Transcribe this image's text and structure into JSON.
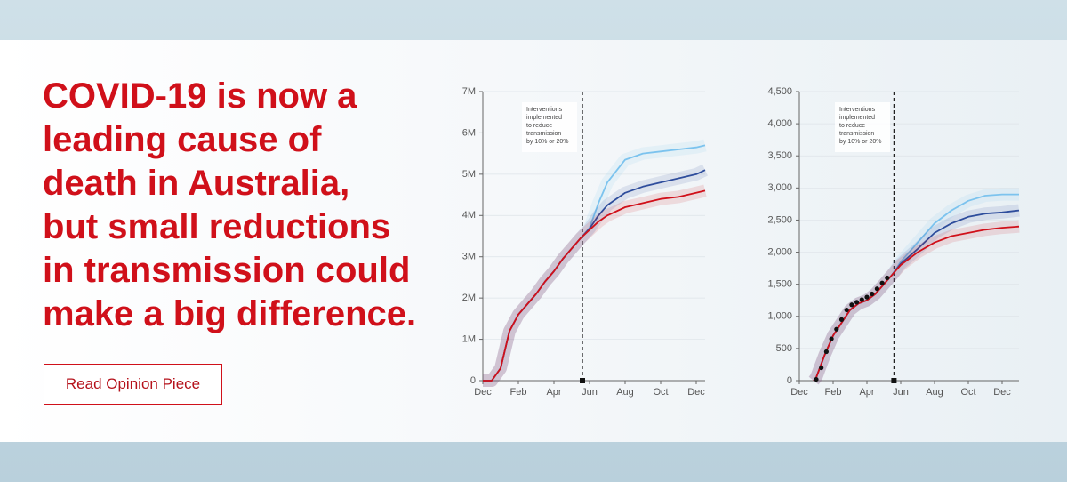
{
  "headline": {
    "lines": [
      "COVID-19 is now a",
      "leading cause of",
      "death in Australia,",
      "but small reductions",
      "in transmission could",
      "make a big difference."
    ]
  },
  "button": {
    "label": "Read Opinion Piece"
  },
  "chart_data": [
    {
      "type": "line",
      "annotation": {
        "lines": [
          "Interventions",
          "implemented",
          "to reduce",
          "transmission",
          "by 10% or 20%"
        ],
        "x": 5.6
      },
      "x": [
        0,
        0.5,
        1,
        1.5,
        2,
        2.5,
        3,
        3.5,
        4,
        4.5,
        5,
        5.5,
        6,
        6.5,
        7,
        8,
        9,
        10,
        11,
        12,
        12.5
      ],
      "series": [
        {
          "color": "#7cc3ee",
          "values": [
            0,
            0,
            300000,
            1200000,
            1600000,
            1850000,
            2100000,
            2400000,
            2650000,
            2950000,
            3200000,
            3450000,
            3700000,
            4300000,
            4800000,
            5350000,
            5500000,
            5550000,
            5600000,
            5650000,
            5700000
          ]
        },
        {
          "color": "#2e4d9c",
          "values": [
            0,
            0,
            300000,
            1200000,
            1600000,
            1850000,
            2100000,
            2400000,
            2650000,
            2950000,
            3200000,
            3450000,
            3680000,
            4000000,
            4250000,
            4550000,
            4700000,
            4800000,
            4900000,
            5000000,
            5100000
          ]
        },
        {
          "color": "#d0101a",
          "values": [
            0,
            0,
            300000,
            1200000,
            1600000,
            1850000,
            2100000,
            2400000,
            2650000,
            2950000,
            3200000,
            3450000,
            3650000,
            3850000,
            4000000,
            4200000,
            4300000,
            4400000,
            4450000,
            4550000,
            4600000
          ]
        }
      ],
      "xlim": [
        0,
        12.5
      ],
      "xticks": [
        {
          "value": 0,
          "label": "Dec"
        },
        {
          "value": 2,
          "label": "Feb"
        },
        {
          "value": 4,
          "label": "Apr"
        },
        {
          "value": 6,
          "label": "Jun"
        },
        {
          "value": 8,
          "label": "Aug"
        },
        {
          "value": 10,
          "label": "Oct"
        },
        {
          "value": 12,
          "label": "Dec"
        }
      ],
      "ylim": [
        0,
        7000000
      ],
      "yticks": [
        0,
        {
          "value": 1000000,
          "label": "1M"
        },
        {
          "value": 2000000,
          "label": "2M"
        },
        {
          "value": 3000000,
          "label": "3M"
        },
        {
          "value": 4000000,
          "label": "4M"
        },
        {
          "value": 5000000,
          "label": "5M"
        },
        {
          "value": 6000000,
          "label": "6M"
        },
        {
          "value": 7000000,
          "label": "7M"
        }
      ],
      "grid": true
    },
    {
      "type": "line",
      "annotation": {
        "lines": [
          "Interventions",
          "implemented",
          "to reduce",
          "transmission",
          "by 10% or 20%"
        ],
        "x": 5.6
      },
      "x": [
        0.85,
        1,
        1.5,
        2,
        2.5,
        3,
        3.5,
        4,
        4.5,
        5,
        5.5,
        6,
        7,
        8,
        9,
        10,
        11,
        12,
        13
      ],
      "series": [
        {
          "color": "#7cc3ee",
          "values": [
            0,
            50,
            400,
            700,
            900,
            1100,
            1200,
            1250,
            1350,
            1500,
            1650,
            1850,
            2150,
            2450,
            2650,
            2800,
            2880,
            2900,
            2900
          ]
        },
        {
          "color": "#2e4d9c",
          "values": [
            0,
            50,
            400,
            700,
            900,
            1100,
            1200,
            1250,
            1350,
            1500,
            1650,
            1820,
            2050,
            2300,
            2450,
            2550,
            2600,
            2620,
            2650
          ]
        },
        {
          "color": "#d0101a",
          "values": [
            0,
            50,
            400,
            700,
            900,
            1100,
            1200,
            1250,
            1350,
            1500,
            1650,
            1800,
            2000,
            2150,
            2250,
            2300,
            2350,
            2380,
            2400
          ]
        },
        {
          "color": "#111111",
          "style": "dots",
          "x": [
            1,
            1.3,
            1.6,
            1.9,
            2.2,
            2.5,
            2.8,
            3.1,
            3.4,
            3.7,
            4,
            4.3,
            4.6,
            4.9,
            5.2
          ],
          "values": [
            20,
            200,
            450,
            650,
            800,
            950,
            1100,
            1180,
            1220,
            1260,
            1300,
            1350,
            1430,
            1520,
            1600
          ]
        }
      ],
      "xlim": [
        0,
        13
      ],
      "xticks": [
        {
          "value": 0,
          "label": "Dec"
        },
        {
          "value": 2,
          "label": "Feb"
        },
        {
          "value": 4,
          "label": "Apr"
        },
        {
          "value": 6,
          "label": "Jun"
        },
        {
          "value": 8,
          "label": "Aug"
        },
        {
          "value": 10,
          "label": "Oct"
        },
        {
          "value": 12,
          "label": "Dec"
        }
      ],
      "ylim": [
        0,
        4500
      ],
      "yticks": [
        0,
        500,
        {
          "value": 1000,
          "label": "1,000"
        },
        {
          "value": 1500,
          "label": "1,500"
        },
        {
          "value": 2000,
          "label": "2,000"
        },
        {
          "value": 2500,
          "label": "2,500"
        },
        {
          "value": 3000,
          "label": "3,000"
        },
        {
          "value": 3500,
          "label": "3,500"
        },
        {
          "value": 4000,
          "label": "4,000"
        },
        {
          "value": 4500,
          "label": "4,500"
        }
      ],
      "grid": true
    }
  ]
}
